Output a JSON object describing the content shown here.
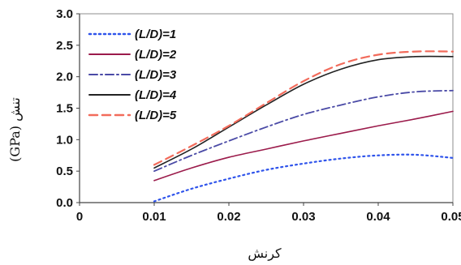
{
  "chart_data": {
    "type": "line",
    "xlabel": "کرنش",
    "ylabel": "(GPa) تنش",
    "xlim": [
      0,
      0.05
    ],
    "ylim": [
      0,
      3.0
    ],
    "x_ticks": [
      "0",
      "0.01",
      "0.02",
      "0.03",
      "0.04",
      "0.05"
    ],
    "y_ticks": [
      "0.0",
      "0.5",
      "1.0",
      "1.5",
      "2.0",
      "2.5",
      "3.0"
    ],
    "grid": false,
    "legend_position": "top-left",
    "series": [
      {
        "name": "(L/D)=1",
        "color": "#2f54eb",
        "dash": "dotted",
        "x": [
          0.01,
          0.015,
          0.02,
          0.025,
          0.03,
          0.035,
          0.04,
          0.045,
          0.05
        ],
        "y": [
          0.02,
          0.22,
          0.38,
          0.52,
          0.62,
          0.7,
          0.75,
          0.76,
          0.71
        ]
      },
      {
        "name": "(L/D)=2",
        "color": "#9b1b4b",
        "dash": "solid",
        "x": [
          0.01,
          0.015,
          0.02,
          0.025,
          0.03,
          0.035,
          0.04,
          0.045,
          0.05
        ],
        "y": [
          0.35,
          0.55,
          0.72,
          0.85,
          0.98,
          1.1,
          1.22,
          1.33,
          1.45
        ]
      },
      {
        "name": "(L/D)=3",
        "color": "#4a4aa6",
        "dash": "dashdot",
        "x": [
          0.01,
          0.015,
          0.02,
          0.025,
          0.03,
          0.035,
          0.04,
          0.045,
          0.05
        ],
        "y": [
          0.5,
          0.75,
          0.98,
          1.2,
          1.4,
          1.55,
          1.68,
          1.76,
          1.78
        ]
      },
      {
        "name": "(L/D)=4",
        "color": "#222222",
        "dash": "solid",
        "x": [
          0.01,
          0.015,
          0.02,
          0.025,
          0.03,
          0.035,
          0.04,
          0.045,
          0.05
        ],
        "y": [
          0.55,
          0.85,
          1.2,
          1.55,
          1.88,
          2.12,
          2.27,
          2.32,
          2.32
        ]
      },
      {
        "name": "(L/D)=5",
        "color": "#f26b5b",
        "dash": "dashed",
        "x": [
          0.01,
          0.015,
          0.02,
          0.025,
          0.03,
          0.035,
          0.04,
          0.045,
          0.05
        ],
        "y": [
          0.6,
          0.9,
          1.22,
          1.58,
          1.93,
          2.2,
          2.35,
          2.4,
          2.4
        ]
      }
    ]
  }
}
